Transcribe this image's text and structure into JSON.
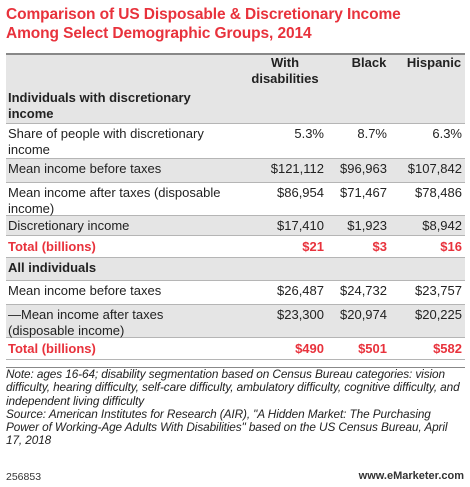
{
  "title_line1": "Comparison of US Disposable & Discretionary Income",
  "title_line2": "Among Select Demographic Groups, 2014",
  "columns": [
    "With\ndisabilities",
    "Black",
    "Hispanic"
  ],
  "col1_line1": "With",
  "col1_line2": "disabilities",
  "col2": "Black",
  "col3": "Hispanic",
  "rows": [
    {
      "label": "Individuals with discretionary income",
      "section": true
    },
    {
      "label": "Share of people with discretionary income",
      "values": [
        "5.3%",
        "8.7%",
        "6.3%"
      ]
    },
    {
      "label": "Mean income before taxes",
      "values": [
        "$121,112",
        "$96,963",
        "$107,842"
      ]
    },
    {
      "label": "Mean income after taxes (disposable income)",
      "values": [
        "$86,954",
        "$71,467",
        "$78,486"
      ]
    },
    {
      "label": "Discretionary income",
      "values": [
        "$17,410",
        "$1,923",
        "$8,942"
      ]
    },
    {
      "label": "Total (billions)",
      "values": [
        "$21",
        "$3",
        "$16"
      ],
      "total": true
    },
    {
      "label": "All individuals",
      "section": true
    },
    {
      "label": "Mean income before taxes",
      "values": [
        "$26,487",
        "$24,732",
        "$23,757"
      ]
    },
    {
      "label": "—Mean income after taxes (disposable income)",
      "values": [
        "$23,300",
        "$20,974",
        "$20,225"
      ]
    },
    {
      "label": "Total (billions)",
      "values": [
        "$490",
        "$501",
        "$582"
      ],
      "total": true
    }
  ],
  "note": "Note: ages 16-64; disability segmentation based on Census Bureau categories: vision difficulty, hearing difficulty, self-care difficulty, ambulatory difficulty, cognitive difficulty, and independent living difficulty",
  "source": "Source: American Institutes for Research (AIR), \"A Hidden Market: The Purchasing Power of Working-Age Adults With Disabilities\" based on the US Census Bureau, April 17, 2018",
  "footer_id": "256853",
  "footer_brand": "www.eMarketer.com",
  "colors": {
    "accent": "#e8323c",
    "band": "#e5e5e5",
    "rule": "#b5b5b5"
  },
  "chart_data": {
    "type": "table",
    "title": "Comparison of US Disposable & Discretionary Income Among Select Demographic Groups, 2014",
    "columns": [
      "With disabilities",
      "Black",
      "Hispanic"
    ],
    "sections": [
      {
        "name": "Individuals with discretionary income",
        "rows": [
          {
            "label": "Share of people with discretionary income",
            "values": [
              "5.3%",
              "8.7%",
              "6.3%"
            ]
          },
          {
            "label": "Mean income before taxes",
            "values": [
              "$121,112",
              "$96,963",
              "$107,842"
            ]
          },
          {
            "label": "Mean income after taxes (disposable income)",
            "values": [
              "$86,954",
              "$71,467",
              "$78,486"
            ]
          },
          {
            "label": "Discretionary income",
            "values": [
              "$17,410",
              "$1,923",
              "$8,942"
            ]
          },
          {
            "label": "Total (billions)",
            "values": [
              "$21",
              "$3",
              "$16"
            ]
          }
        ]
      },
      {
        "name": "All individuals",
        "rows": [
          {
            "label": "Mean income before taxes",
            "values": [
              "$26,487",
              "$24,732",
              "$23,757"
            ]
          },
          {
            "label": "—Mean income after taxes (disposable income)",
            "values": [
              "$23,300",
              "$20,974",
              "$20,225"
            ]
          },
          {
            "label": "Total (billions)",
            "values": [
              "$490",
              "$501",
              "$582"
            ]
          }
        ]
      }
    ]
  }
}
